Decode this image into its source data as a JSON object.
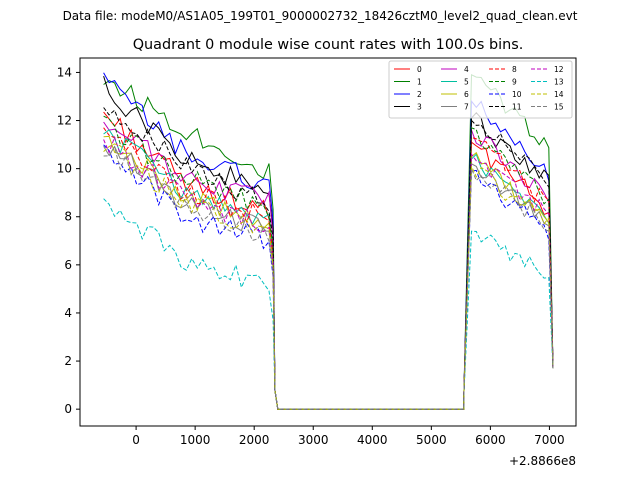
{
  "chart_data": {
    "type": "line",
    "suptitle": "Data file: modeM0/AS1A05_199T01_9000002732_18426cztM0_level2_quad_clean.evt",
    "title": "Quadrant 0 module wise count rates with 100.0s bins.",
    "xlabel": "",
    "ylabel": "",
    "x_offset_label": "+2.8866e8",
    "xlim": [
      -950,
      7450
    ],
    "ylim": [
      -0.7,
      14.6
    ],
    "xticks": [
      0,
      1000,
      2000,
      3000,
      4000,
      5000,
      6000,
      7000
    ],
    "yticks": [
      0,
      2,
      4,
      6,
      8,
      10,
      12,
      14
    ],
    "grid": false,
    "legend_position": "top-right",
    "legend_columns": 4,
    "segments": [
      {
        "x_start": -550,
        "x_end": 2350
      },
      {
        "x_start": 2400,
        "x_end": 5550
      },
      {
        "x_start": 5550,
        "x_end": 7060
      }
    ],
    "series": [
      {
        "name": "0",
        "color": "#ff0000",
        "style": "solid",
        "start": 12.3,
        "mid": 9.4,
        "end": 8.2,
        "peak": 11.1,
        "tail": 8.3,
        "seed": 3
      },
      {
        "name": "1",
        "color": "#008000",
        "style": "solid",
        "start": 13.8,
        "mid": 11.6,
        "end": 9.8,
        "peak": 13.9,
        "tail": 11.0,
        "seed": 7
      },
      {
        "name": "2",
        "color": "#0000ff",
        "style": "solid",
        "start": 13.7,
        "mid": 10.6,
        "end": 9.3,
        "peak": 12.8,
        "tail": 9.8,
        "seed": 11
      },
      {
        "name": "3",
        "color": "#000000",
        "style": "solid",
        "start": 13.4,
        "mid": 10.4,
        "end": 9.0,
        "peak": 12.1,
        "tail": 9.4,
        "seed": 13
      },
      {
        "name": "4",
        "color": "#bf00bf",
        "style": "solid",
        "start": 12.0,
        "mid": 9.6,
        "end": 8.6,
        "peak": 11.6,
        "tail": 8.8,
        "seed": 17
      },
      {
        "name": "5",
        "color": "#00bf9f",
        "style": "solid",
        "start": 11.6,
        "mid": 9.0,
        "end": 7.9,
        "peak": 10.4,
        "tail": 8.0,
        "seed": 19
      },
      {
        "name": "6",
        "color": "#bfbf00",
        "style": "solid",
        "start": 11.4,
        "mid": 8.8,
        "end": 7.5,
        "peak": 10.5,
        "tail": 7.8,
        "seed": 23
      },
      {
        "name": "7",
        "color": "#7f7f7f",
        "style": "solid",
        "start": 11.0,
        "mid": 8.6,
        "end": 7.4,
        "peak": 10.2,
        "tail": 7.6,
        "seed": 29
      },
      {
        "name": "8",
        "color": "#ff0000",
        "style": "dashed",
        "start": 11.5,
        "mid": 9.0,
        "end": 7.9,
        "peak": 11.3,
        "tail": 8.5,
        "seed": 31
      },
      {
        "name": "9",
        "color": "#008000",
        "style": "dashed",
        "start": 11.8,
        "mid": 9.6,
        "end": 8.3,
        "peak": 11.7,
        "tail": 8.6,
        "seed": 37
      },
      {
        "name": "10",
        "color": "#0000ff",
        "style": "dashed",
        "start": 10.6,
        "mid": 8.0,
        "end": 7.0,
        "peak": 9.9,
        "tail": 7.3,
        "seed": 41
      },
      {
        "name": "11",
        "color": "#000000",
        "style": "dashed",
        "start": 12.8,
        "mid": 10.0,
        "end": 8.6,
        "peak": 12.0,
        "tail": 9.6,
        "seed": 43
      },
      {
        "name": "12",
        "color": "#bf00bf",
        "style": "dashed",
        "start": 11.2,
        "mid": 8.8,
        "end": 7.6,
        "peak": 10.6,
        "tail": 8.1,
        "seed": 47
      },
      {
        "name": "13",
        "color": "#00bfbf",
        "style": "dashed",
        "start": 8.7,
        "mid": 6.1,
        "end": 5.2,
        "peak": 7.4,
        "tail": 5.7,
        "seed": 53
      },
      {
        "name": "14",
        "color": "#bfbf00",
        "style": "dashed",
        "start": 11.0,
        "mid": 8.5,
        "end": 7.4,
        "peak": 10.1,
        "tail": 7.7,
        "seed": 59
      },
      {
        "name": "15",
        "color": "#7f7f7f",
        "style": "dashed",
        "start": 10.9,
        "mid": 8.3,
        "end": 7.2,
        "peak": 10.0,
        "tail": 7.5,
        "seed": 61
      }
    ]
  }
}
